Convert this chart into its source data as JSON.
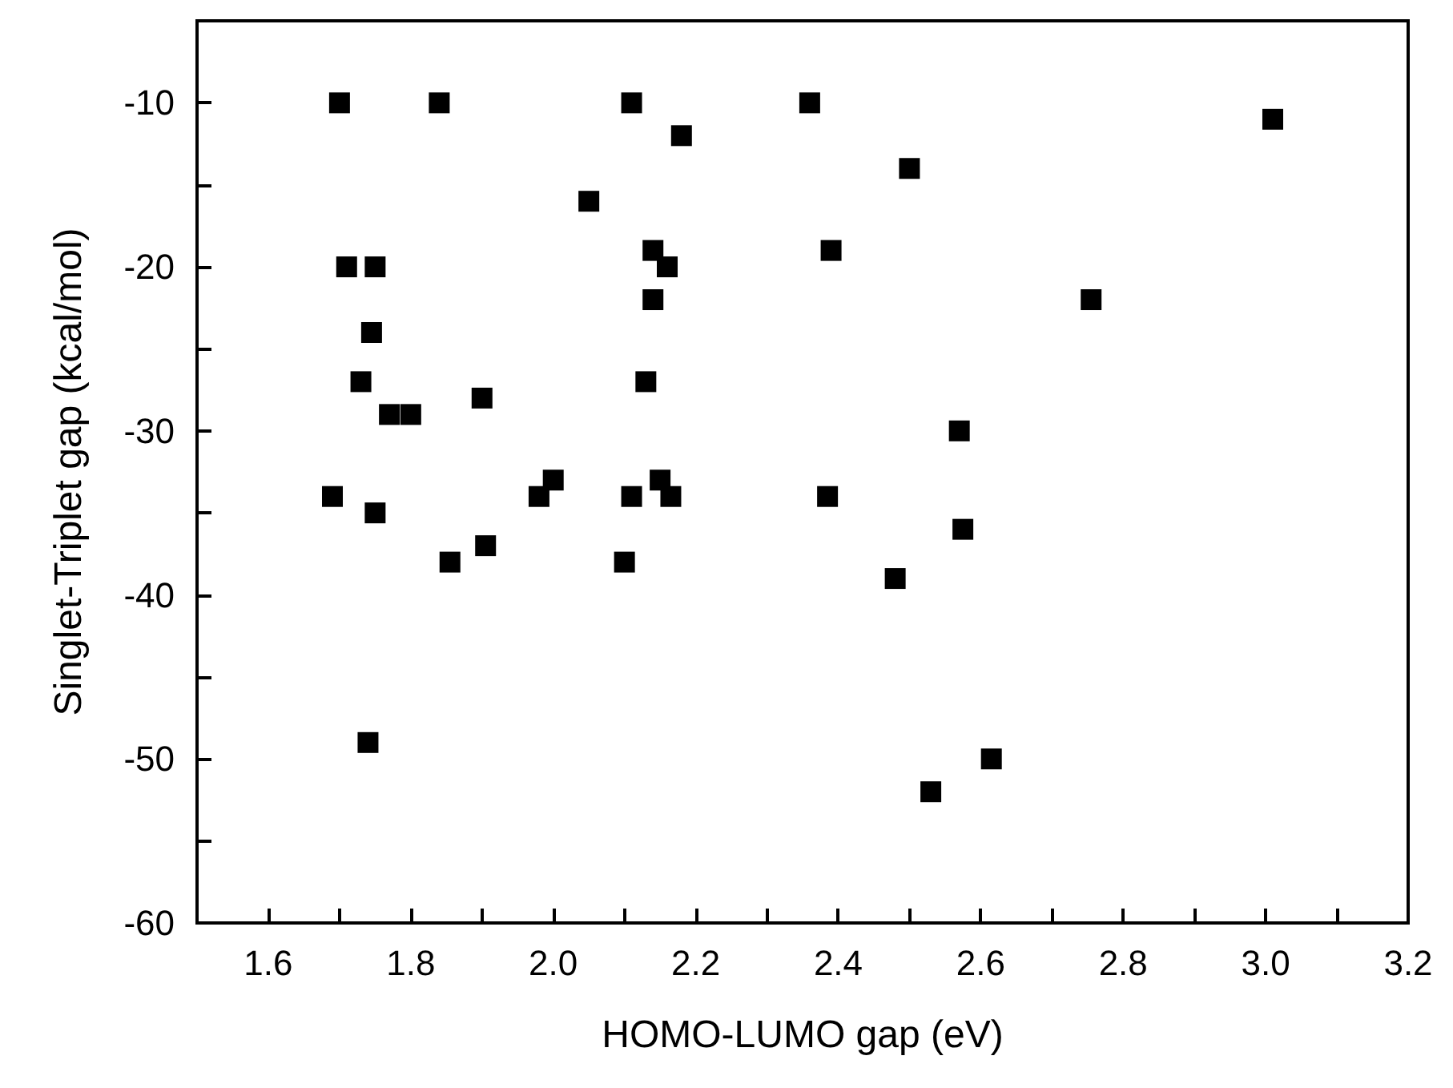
{
  "chart_data": {
    "type": "scatter",
    "xlabel": "HOMO-LUMO gap (eV)",
    "ylabel": "Singlet-Triplet gap (kcal/mol)",
    "x": [
      1.7,
      1.84,
      2.11,
      2.36,
      2.18,
      2.05,
      2.14,
      2.16,
      1.71,
      1.75,
      2.14,
      1.745,
      1.73,
      2.13,
      1.9,
      1.77,
      1.8,
      1.69,
      1.75,
      1.98,
      2.0,
      2.11,
      2.15,
      2.165,
      1.855,
      1.905,
      2.1,
      1.74,
      3.01,
      2.5,
      2.39,
      2.755,
      2.57,
      2.385,
      2.575,
      2.48,
      2.615,
      2.53
    ],
    "values": [
      -10,
      -10,
      -10,
      -10,
      -12,
      -16,
      -19,
      -20,
      -20,
      -20,
      -22,
      -24,
      -27,
      -27,
      -28,
      -29,
      -29,
      -34,
      -35,
      -34,
      -33,
      -34,
      -33,
      -34,
      -38,
      -37,
      -38,
      -49,
      -11,
      -14,
      -19,
      -22,
      -30,
      -34,
      -36,
      -39,
      -50,
      -52
    ],
    "color": "#000000",
    "marker": "square",
    "xlim": [
      1.5,
      3.2
    ],
    "ylim": [
      -60,
      -5
    ],
    "xticks": [
      1.6,
      {
        "value": 1.7,
        "label": null
      },
      1.8,
      {
        "value": 1.9,
        "label": null
      },
      {
        "value": 2.0,
        "label": "2.0"
      },
      {
        "value": 2.1,
        "label": null
      },
      2.2,
      {
        "value": 2.3,
        "label": null
      },
      2.4,
      {
        "value": 2.5,
        "label": null
      },
      2.6,
      {
        "value": 2.7,
        "label": null
      },
      2.8,
      {
        "value": 2.9,
        "label": null
      },
      {
        "value": 3.0,
        "label": "3.0"
      },
      {
        "value": 3.1,
        "label": null
      },
      3.2
    ],
    "yticks": [
      -60,
      {
        "value": -55,
        "label": null
      },
      -50,
      {
        "value": -45,
        "label": null
      },
      -40,
      {
        "value": -35,
        "label": null
      },
      -30,
      {
        "value": -25,
        "label": null
      },
      -20,
      {
        "value": -15,
        "label": null
      },
      -10
    ]
  }
}
